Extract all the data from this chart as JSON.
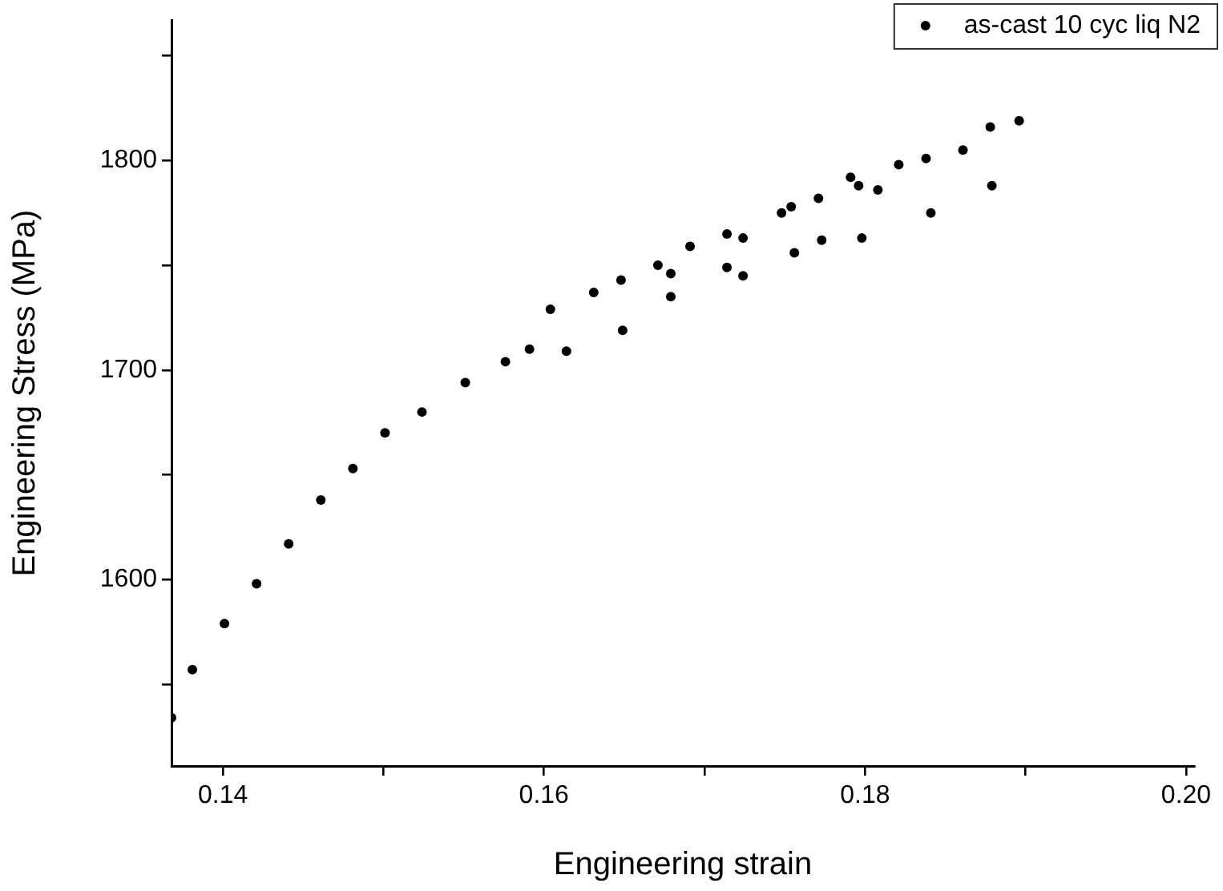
{
  "chart_data": {
    "type": "scatter",
    "xlabel": "Engineering strain",
    "ylabel": "Engineering Stress (MPa)",
    "xlim": [
      0.1368,
      0.2005
    ],
    "ylim": [
      1511,
      1867
    ],
    "xticks": [
      0.14,
      {
        "value": 0.15,
        "label": null
      },
      0.16,
      {
        "value": 0.17,
        "label": null
      },
      0.18,
      {
        "value": 0.19,
        "label": null
      },
      {
        "value": 0.2,
        "label": "0.20"
      }
    ],
    "yticks": [
      {
        "value": 1550,
        "label": null
      },
      1600,
      {
        "value": 1650,
        "label": null
      },
      1700,
      {
        "value": 1750,
        "label": null
      },
      1800,
      {
        "value": 1850,
        "label": null
      }
    ],
    "grid": false,
    "legend": "top right",
    "marker": "circle",
    "series": [
      {
        "name": "as-cast 10 cyc liq N2",
        "color": "#000000",
        "x": [
          0.1368,
          0.1381,
          0.1401,
          0.1421,
          0.1441,
          0.1461,
          0.1481,
          0.1501,
          0.1524,
          0.1551,
          0.1576,
          0.1591,
          0.1604,
          0.1614,
          0.1631,
          0.1648,
          0.1649,
          0.1671,
          0.1679,
          0.1679,
          0.1691,
          0.1714,
          0.1714,
          0.1724,
          0.1724,
          0.1748,
          0.1754,
          0.1756,
          0.1771,
          0.1773,
          0.1791,
          0.1796,
          0.1798,
          0.1808,
          0.1821,
          0.1838,
          0.1841,
          0.1861,
          0.1878,
          0.1879,
          0.1896
        ],
        "values": [
          1534,
          1557,
          1579,
          1598,
          1617,
          1638,
          1653,
          1670,
          1680,
          1694,
          1704,
          1710,
          1729,
          1709,
          1737,
          1743,
          1719,
          1750,
          1746,
          1735,
          1759,
          1765,
          1749,
          1763,
          1745,
          1775,
          1778,
          1756,
          1782,
          1762,
          1792,
          1788,
          1763,
          1786,
          1798,
          1801,
          1775,
          1805,
          1816,
          1788,
          1819
        ]
      }
    ]
  }
}
